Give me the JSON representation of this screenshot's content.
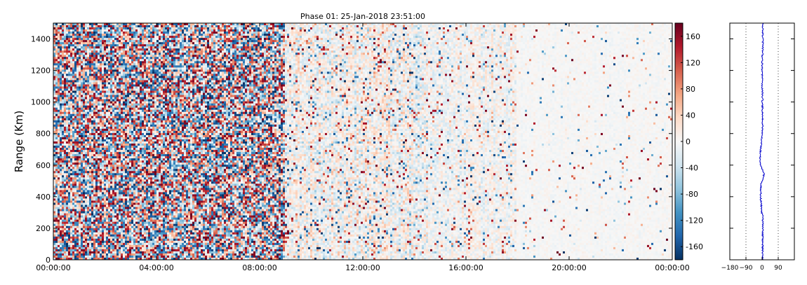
{
  "chart_data": [
    {
      "type": "heatmap",
      "title": "Phase 01: 25-Jan-2018 23:51:00",
      "ylabel": "Range (Km)",
      "xlabel": "",
      "x_ticks": [
        "00:00:00",
        "04:00:00",
        "08:00:00",
        "12:00:00",
        "16:00:00",
        "20:00:00",
        "00:00:00"
      ],
      "y_ticks": [
        0,
        200,
        400,
        600,
        800,
        1000,
        1200,
        1400
      ],
      "ylim": [
        0,
        1500
      ],
      "xlim_hours": [
        0,
        24
      ],
      "grid": false,
      "colormap": [
        "#053061",
        "#2166ac",
        "#4393c3",
        "#92c5de",
        "#d1e5f0",
        "#f7f7f7",
        "#fddbc7",
        "#f4a582",
        "#d6604d",
        "#b2182b",
        "#67001f"
      ],
      "colorbar": {
        "ticks": [
          160,
          120,
          80,
          40,
          0,
          -40,
          -80,
          -120,
          -160
        ],
        "range": [
          -180,
          180
        ]
      },
      "noise_profile": [
        {
          "from_hour": 0,
          "to_hour": 9,
          "phase_spread_deg": 180
        },
        {
          "from_hour": 9,
          "to_hour": 14.5,
          "phase_spread_deg": 60
        },
        {
          "from_hour": 14.5,
          "to_hour": 18,
          "phase_spread_deg": 40
        },
        {
          "from_hour": 18,
          "to_hour": 24,
          "phase_spread_deg": 12
        }
      ]
    },
    {
      "type": "line",
      "x_ticks": [
        -180,
        -90,
        0,
        90
      ],
      "xlim": [
        -180,
        180
      ],
      "ylim": [
        0,
        1500
      ],
      "reference_lines": [
        -90,
        90
      ],
      "line_color": "#0000cc",
      "series": [
        {
          "y": [
            0,
            100,
            200,
            280,
            300,
            400,
            480,
            520,
            560,
            600,
            640,
            700,
            760,
            800,
            850,
            1000,
            1200,
            1400,
            1500
          ],
          "x": [
            2,
            3,
            4,
            3,
            -2,
            -8,
            -6,
            10,
            8,
            -10,
            -12,
            -8,
            -4,
            2,
            3,
            2,
            0,
            4,
            3
          ]
        }
      ]
    }
  ]
}
